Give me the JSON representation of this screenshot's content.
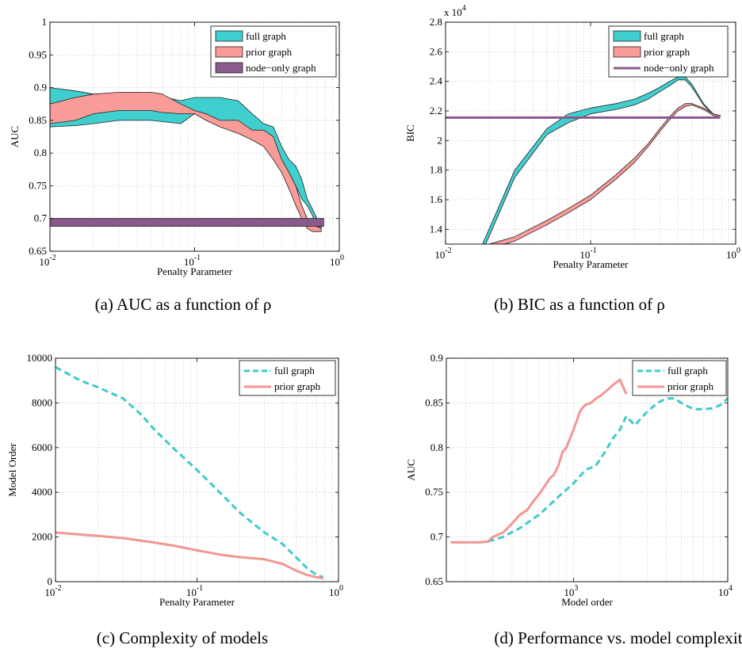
{
  "colors": {
    "full": "#40cfcf",
    "prior": "#f99b98",
    "node": "#8a5a8e",
    "full_line": "#3ecbcb",
    "prior_line": "#f39693"
  },
  "captions": [
    "(a) AUC as a function of ρ",
    "(b) BIC as a function of ρ",
    "(c) Complexity of models",
    "(d) Performance vs. model complexit"
  ],
  "chart_data": [
    {
      "id": "a",
      "type": "area",
      "title": "",
      "xlabel": "Penalty Parameter",
      "ylabel": "AUC",
      "xscale": "log",
      "xlim": [
        0.01,
        1
      ],
      "ylim": [
        0.65,
        1.0
      ],
      "xticks": [
        {
          "v": 0.01,
          "b": "10",
          "e": "-2"
        },
        {
          "v": 0.1,
          "b": "10",
          "e": "-1"
        },
        {
          "v": 1,
          "b": "10",
          "e": "0"
        }
      ],
      "yticks": [
        "0.65",
        "0.7",
        "0.75",
        "0.8",
        "0.85",
        "0.9",
        "0.95",
        "1"
      ],
      "grid": true,
      "legend_position": "top-right",
      "legend": [
        "full graph",
        "prior graph",
        "node−only graph"
      ],
      "series": [
        {
          "name": "full graph",
          "kind": "band",
          "x": [
            0.01,
            0.015,
            0.02,
            0.03,
            0.05,
            0.08,
            0.1,
            0.15,
            0.2,
            0.25,
            0.3,
            0.35,
            0.4,
            0.45,
            0.5,
            0.55,
            0.6,
            0.65,
            0.7,
            0.75
          ],
          "upper": [
            0.9,
            0.895,
            0.89,
            0.89,
            0.89,
            0.88,
            0.885,
            0.885,
            0.88,
            0.86,
            0.845,
            0.84,
            0.81,
            0.79,
            0.78,
            0.76,
            0.73,
            0.715,
            0.7,
            0.695
          ],
          "lower": [
            0.84,
            0.842,
            0.845,
            0.85,
            0.85,
            0.845,
            0.86,
            0.84,
            0.835,
            0.835,
            0.82,
            0.8,
            0.79,
            0.77,
            0.75,
            0.73,
            0.72,
            0.705,
            0.69,
            0.685
          ]
        },
        {
          "name": "prior graph",
          "kind": "band",
          "x": [
            0.01,
            0.015,
            0.02,
            0.03,
            0.05,
            0.06,
            0.08,
            0.1,
            0.12,
            0.15,
            0.2,
            0.25,
            0.3,
            0.35,
            0.4,
            0.45,
            0.5,
            0.55,
            0.6,
            0.65,
            0.75
          ],
          "upper": [
            0.875,
            0.885,
            0.89,
            0.893,
            0.893,
            0.89,
            0.875,
            0.865,
            0.86,
            0.85,
            0.85,
            0.835,
            0.835,
            0.825,
            0.79,
            0.77,
            0.75,
            0.72,
            0.7,
            0.69,
            0.685
          ],
          "lower": [
            0.845,
            0.85,
            0.86,
            0.865,
            0.865,
            0.862,
            0.86,
            0.86,
            0.85,
            0.84,
            0.83,
            0.82,
            0.81,
            0.79,
            0.77,
            0.745,
            0.72,
            0.7,
            0.685,
            0.68,
            0.68
          ]
        },
        {
          "name": "node−only graph",
          "kind": "band",
          "x": [
            0.01,
            0.78
          ],
          "upper": [
            0.7,
            0.7
          ],
          "lower": [
            0.688,
            0.688
          ]
        }
      ]
    },
    {
      "id": "b",
      "type": "area",
      "title": "",
      "xlabel": "Penalty Parameter",
      "ylabel": "BIC",
      "y_multiplier": {
        "b": "x 10",
        "e": "4"
      },
      "xscale": "log",
      "xlim": [
        0.01,
        1
      ],
      "ylim": [
        1.3,
        2.8
      ],
      "xticks": [
        {
          "v": 0.01,
          "b": "10",
          "e": "-2"
        },
        {
          "v": 0.1,
          "b": "10",
          "e": "-1"
        },
        {
          "v": 1,
          "b": "10",
          "e": "0"
        }
      ],
      "yticks": [
        "1.4",
        "1.6",
        "1.8",
        "2",
        "2.2",
        "2.4",
        "2.6",
        "2.8"
      ],
      "grid": true,
      "legend_position": "top-right",
      "legend": [
        "full graph",
        "prior graph",
        "node−only graph"
      ],
      "series": [
        {
          "name": "full graph",
          "kind": "band",
          "x": [
            0.018,
            0.03,
            0.05,
            0.07,
            0.1,
            0.15,
            0.2,
            0.25,
            0.3,
            0.35,
            0.4,
            0.45,
            0.5,
            0.6,
            0.7,
            0.78
          ],
          "upper": [
            1.3,
            1.8,
            2.08,
            2.18,
            2.22,
            2.25,
            2.28,
            2.32,
            2.36,
            2.4,
            2.43,
            2.43,
            2.38,
            2.25,
            2.18,
            2.17
          ],
          "lower": [
            1.25,
            1.75,
            2.04,
            2.12,
            2.18,
            2.21,
            2.24,
            2.28,
            2.33,
            2.37,
            2.41,
            2.41,
            2.36,
            2.24,
            2.17,
            2.16
          ]
        },
        {
          "name": "prior graph",
          "kind": "band",
          "x": [
            0.02,
            0.03,
            0.05,
            0.07,
            0.1,
            0.15,
            0.2,
            0.25,
            0.3,
            0.35,
            0.4,
            0.45,
            0.5,
            0.6,
            0.7,
            0.78
          ],
          "upper": [
            1.3,
            1.35,
            1.46,
            1.54,
            1.63,
            1.77,
            1.88,
            1.98,
            2.08,
            2.16,
            2.22,
            2.25,
            2.25,
            2.22,
            2.18,
            2.17
          ],
          "lower": [
            1.27,
            1.32,
            1.43,
            1.51,
            1.6,
            1.74,
            1.85,
            1.96,
            2.06,
            2.14,
            2.2,
            2.23,
            2.24,
            2.21,
            2.17,
            2.16
          ]
        },
        {
          "name": "node−only graph",
          "kind": "line",
          "x": [
            0.01,
            0.78
          ],
          "y": [
            2.155,
            2.155
          ]
        }
      ]
    },
    {
      "id": "c",
      "type": "line",
      "title": "",
      "xlabel": "Penalty Parameter",
      "ylabel": "Model Order",
      "xscale": "log",
      "xlim": [
        0.01,
        1
      ],
      "ylim": [
        0,
        10000
      ],
      "xticks": [
        {
          "v": 0.01,
          "b": "10",
          "e": "-2"
        },
        {
          "v": 0.1,
          "b": "10",
          "e": "-1"
        },
        {
          "v": 1,
          "b": "10",
          "e": "0"
        }
      ],
      "yticks": [
        "0",
        "2000",
        "4000",
        "6000",
        "8000",
        "10000"
      ],
      "grid": true,
      "legend_position": "top-right",
      "legend": [
        "full graph",
        "prior graph"
      ],
      "series": [
        {
          "name": "full graph",
          "style": "dashed",
          "x": [
            0.01,
            0.015,
            0.02,
            0.03,
            0.04,
            0.05,
            0.07,
            0.1,
            0.15,
            0.2,
            0.3,
            0.4,
            0.5,
            0.6,
            0.7,
            0.78
          ],
          "y": [
            9600,
            9000,
            8700,
            8200,
            7500,
            6800,
            5900,
            5000,
            3900,
            3100,
            2200,
            1700,
            1100,
            600,
            300,
            200
          ]
        },
        {
          "name": "prior graph",
          "style": "solid",
          "x": [
            0.01,
            0.02,
            0.03,
            0.05,
            0.07,
            0.1,
            0.15,
            0.2,
            0.3,
            0.4,
            0.5,
            0.6,
            0.7,
            0.78
          ],
          "y": [
            2200,
            2050,
            1950,
            1750,
            1600,
            1400,
            1200,
            1100,
            1000,
            800,
            500,
            300,
            200,
            150
          ]
        }
      ]
    },
    {
      "id": "d",
      "type": "line",
      "title": "",
      "xlabel": "Model order",
      "ylabel": "AUC",
      "xscale": "log",
      "xlim": [
        150,
        10000
      ],
      "ylim": [
        0.65,
        0.9
      ],
      "xticks": [
        {
          "v": 1000,
          "b": "10",
          "e": "3"
        },
        {
          "v": 10000,
          "b": "10",
          "e": "4"
        }
      ],
      "yticks": [
        "0.65",
        "0.7",
        "0.75",
        "0.8",
        "0.85",
        "0.9"
      ],
      "grid": true,
      "legend_position": "top-right",
      "legend": [
        "full graph",
        "prior graph"
      ],
      "series": [
        {
          "name": "full graph",
          "style": "dashed",
          "x": [
            280,
            350,
            450,
            600,
            800,
            1000,
            1200,
            1400,
            1600,
            1800,
            2000,
            2200,
            2500,
            3000,
            3500,
            4000,
            4500,
            5000,
            6000,
            7000,
            8000,
            9000,
            10000
          ],
          "y": [
            0.695,
            0.7,
            0.71,
            0.725,
            0.745,
            0.76,
            0.775,
            0.78,
            0.795,
            0.81,
            0.82,
            0.835,
            0.825,
            0.84,
            0.85,
            0.855,
            0.855,
            0.85,
            0.843,
            0.843,
            0.844,
            0.848,
            0.855
          ]
        },
        {
          "name": "prior graph",
          "style": "solid",
          "x": [
            160,
            200,
            250,
            280,
            300,
            350,
            400,
            450,
            500,
            550,
            600,
            700,
            750,
            800,
            850,
            900,
            950,
            1000,
            1050,
            1100,
            1150,
            1200,
            1300,
            1400,
            1500,
            1600,
            1700,
            1800,
            1900,
            2000,
            2200
          ],
          "y": [
            0.694,
            0.694,
            0.694,
            0.695,
            0.7,
            0.705,
            0.715,
            0.725,
            0.73,
            0.74,
            0.748,
            0.765,
            0.77,
            0.78,
            0.795,
            0.8,
            0.81,
            0.82,
            0.83,
            0.84,
            0.845,
            0.848,
            0.85,
            0.855,
            0.858,
            0.862,
            0.866,
            0.87,
            0.873,
            0.876,
            0.86
          ]
        }
      ]
    }
  ]
}
